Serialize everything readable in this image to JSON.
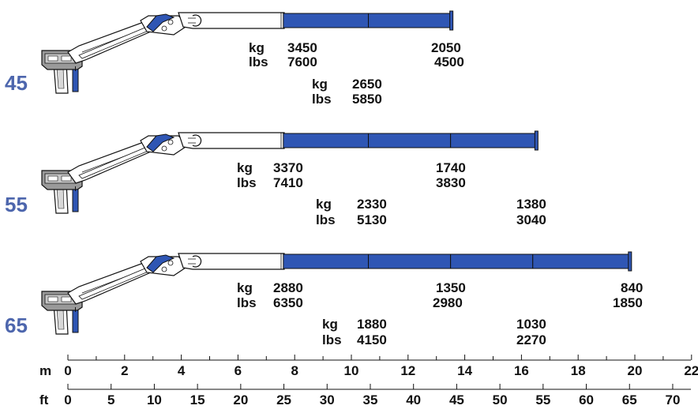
{
  "colors": {
    "boom_blue": "#2f56b4",
    "model_label": "#4d66ad",
    "ink": "#111111",
    "steel": "#8a8a8a"
  },
  "cranes": [
    {
      "model": "45",
      "boom_sections_m": [
        7.6,
        10.6,
        13.5
      ],
      "loads": [
        {
          "row": "upper",
          "kg": "3450",
          "lbs": "7600",
          "kg2": "2050",
          "lbs2": "4500"
        },
        {
          "row": "lower",
          "kg": "2650",
          "lbs": "5850"
        }
      ]
    },
    {
      "model": "55",
      "boom_sections_m": [
        7.6,
        10.6,
        13.5,
        16.5
      ],
      "loads": [
        {
          "row": "upper",
          "kg": "3370",
          "lbs": "7410",
          "kg2": "1740",
          "lbs2": "3830"
        },
        {
          "row": "lower",
          "kg": "2330",
          "lbs": "5130",
          "kg2": "1380",
          "lbs2": "3040"
        }
      ]
    },
    {
      "model": "65",
      "boom_sections_m": [
        7.6,
        10.6,
        13.5,
        16.4,
        19.8
      ],
      "loads": [
        {
          "row": "upper",
          "kg": "2880",
          "lbs": "6350",
          "kg2": "1350",
          "lbs2": "2980",
          "kg3": "840",
          "lbs3": "1850"
        },
        {
          "row": "lower",
          "kg": "1880",
          "lbs": "4150",
          "kg2": "1030",
          "lbs2": "2270"
        }
      ]
    }
  ],
  "units": {
    "kg": "kg",
    "lbs": "lbs"
  },
  "scale_m": {
    "unit": "m",
    "labels": [
      "0",
      "2",
      "4",
      "6",
      "8",
      "10",
      "12",
      "14",
      "16",
      "18",
      "20",
      "22"
    ]
  },
  "scale_ft": {
    "unit": "ft",
    "labels": [
      "0",
      "5",
      "10",
      "15",
      "20",
      "25",
      "30",
      "35",
      "40",
      "45",
      "50",
      "55",
      "60",
      "65",
      "70"
    ]
  }
}
